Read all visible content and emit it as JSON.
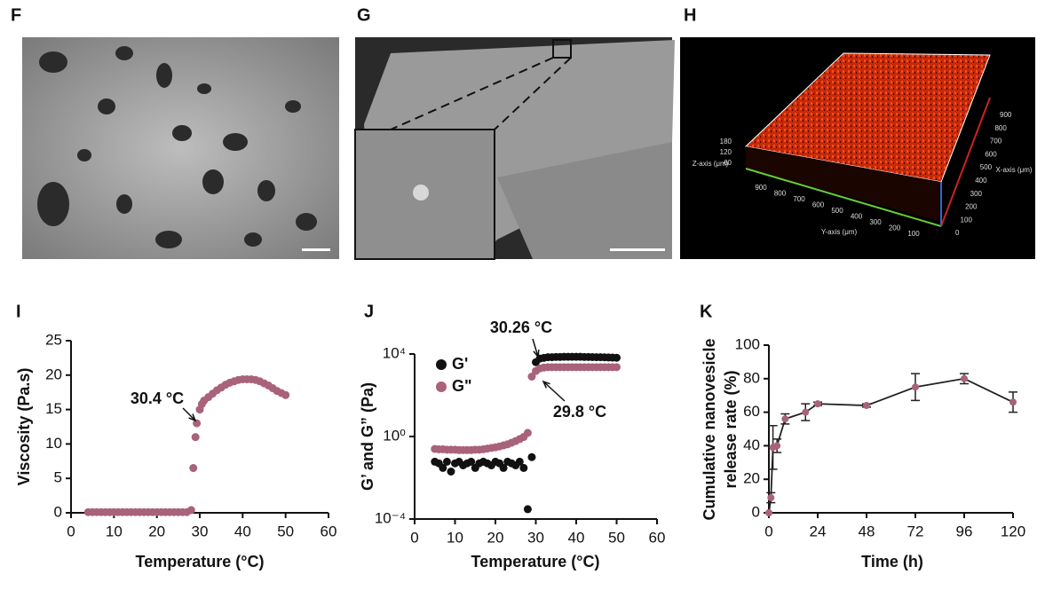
{
  "panels": [
    {
      "label": "F"
    },
    {
      "label": "G"
    },
    {
      "label": "H",
      "z_axis_label": "Z-axis (μm)",
      "z_ticks": [
        180,
        120,
        60
      ],
      "y_axis_label": "Y-axis (μm)",
      "y_ticks": [
        900,
        800,
        700,
        600,
        500,
        400,
        300,
        200,
        100
      ],
      "x_axis_label": "X-axis (μm)",
      "x_ticks": [
        900,
        800,
        700,
        600,
        500,
        400,
        300,
        200,
        100,
        0
      ]
    }
  ],
  "chart_data": [
    {
      "label": "I",
      "type": "scatter",
      "x_label": "Temperature (°C)",
      "y_label": "Viscosity (Pa.s)",
      "xlim": [
        0,
        60
      ],
      "xticks": [
        0,
        10,
        20,
        30,
        40,
        50,
        60
      ],
      "ylim": [
        0,
        25
      ],
      "yticks": [
        0,
        5,
        10,
        15,
        20,
        25
      ],
      "annotations": [
        "30.4 °C"
      ],
      "series": [
        {
          "color": "#a8627a",
          "x": [
            4,
            5,
            6,
            7,
            8,
            9,
            10,
            11,
            12,
            13,
            14,
            15,
            16,
            17,
            18,
            19,
            20,
            21,
            22,
            23,
            24,
            25,
            26,
            27,
            28,
            28.5,
            29,
            29.3,
            30,
            30.5,
            31,
            32,
            33,
            34,
            35,
            36,
            37,
            38,
            39,
            40,
            41,
            42,
            43,
            44,
            45,
            46,
            47,
            48,
            49,
            50
          ],
          "values": [
            0.1,
            0.1,
            0.1,
            0.1,
            0.1,
            0.1,
            0.1,
            0.1,
            0.1,
            0.1,
            0.1,
            0.1,
            0.1,
            0.1,
            0.1,
            0.1,
            0.1,
            0.1,
            0.1,
            0.1,
            0.1,
            0.1,
            0.1,
            0.1,
            0.4,
            6.5,
            11,
            13,
            15,
            15.8,
            16.3,
            16.8,
            17.3,
            17.8,
            18.2,
            18.6,
            18.9,
            19.1,
            19.3,
            19.4,
            19.4,
            19.4,
            19.3,
            19.1,
            18.8,
            18.5,
            18.1,
            17.7,
            17.4,
            17.1
          ]
        }
      ]
    },
    {
      "label": "J",
      "type": "scatter",
      "log_y": true,
      "legend": "upper left",
      "x_label": "Temperature (°C)",
      "y_label": "G’ and G” (Pa)",
      "xlim": [
        0,
        60
      ],
      "xticks": [
        0,
        10,
        20,
        30,
        40,
        50,
        60
      ],
      "ylim": [
        0.0001,
        10000
      ],
      "yticks": [
        {
          "value": 0.0001,
          "label": "10⁻⁴"
        },
        {
          "value": 1,
          "label": "10⁰"
        },
        {
          "value": 10000,
          "label": "10⁴"
        }
      ],
      "annotations": [
        "30.26 °C",
        "29.8 °C"
      ],
      "series": [
        {
          "name": "G'",
          "color": "#111111",
          "x": [
            5,
            6,
            7,
            8,
            9,
            10,
            11,
            12,
            13,
            14,
            15,
            16,
            17,
            18,
            19,
            20,
            21,
            22,
            23,
            24,
            25,
            26,
            27,
            28,
            29,
            30,
            31,
            32,
            33,
            34,
            35,
            36,
            37,
            38,
            39,
            40,
            41,
            42,
            43,
            44,
            45,
            46,
            47,
            48,
            49,
            50
          ],
          "values": [
            0.06,
            0.05,
            0.03,
            0.06,
            0.02,
            0.05,
            0.06,
            0.04,
            0.05,
            0.06,
            0.03,
            0.05,
            0.06,
            0.05,
            0.04,
            0.06,
            0.05,
            0.03,
            0.06,
            0.05,
            0.04,
            0.06,
            0.03,
            0.0003,
            0.1,
            4000,
            6000,
            6500,
            7000,
            7000,
            7200,
            7200,
            7300,
            7300,
            7300,
            7300,
            7300,
            7200,
            7200,
            7100,
            7000,
            7000,
            6900,
            6800,
            6700,
            6600
          ]
        },
        {
          "name": "G\"",
          "color": "#a8627a",
          "x": [
            5,
            6,
            7,
            8,
            9,
            10,
            11,
            12,
            13,
            14,
            15,
            16,
            17,
            18,
            19,
            20,
            21,
            22,
            23,
            24,
            25,
            26,
            27,
            28,
            29,
            30,
            31,
            32,
            33,
            34,
            35,
            36,
            37,
            38,
            39,
            40,
            41,
            42,
            43,
            44,
            45,
            46,
            47,
            48,
            49,
            50
          ],
          "values": [
            0.25,
            0.24,
            0.24,
            0.23,
            0.23,
            0.23,
            0.22,
            0.22,
            0.22,
            0.22,
            0.23,
            0.23,
            0.24,
            0.26,
            0.28,
            0.3,
            0.33,
            0.37,
            0.42,
            0.5,
            0.6,
            0.75,
            0.95,
            1.5,
            800,
            1500,
            2000,
            2200,
            2300,
            2300,
            2300,
            2300,
            2300,
            2300,
            2300,
            2300,
            2300,
            2300,
            2300,
            2300,
            2300,
            2300,
            2300,
            2300,
            2300,
            2300
          ]
        }
      ]
    },
    {
      "label": "K",
      "type": "line",
      "x_label": "Time (h)",
      "y_label": [
        "Cumulative nanovesicle",
        "release rate (%)"
      ],
      "xlim": [
        0,
        120
      ],
      "xticks": [
        0,
        24,
        48,
        72,
        96,
        120
      ],
      "ylim": [
        0,
        100
      ],
      "yticks": [
        0,
        20,
        40,
        60,
        80,
        100
      ],
      "series": [
        {
          "color": "#a8627a",
          "line_color": "#222222",
          "x": [
            0,
            1,
            2,
            4,
            8,
            18,
            24,
            48,
            72,
            96,
            120
          ],
          "values": [
            0,
            9,
            39,
            40,
            56,
            60,
            65,
            64,
            75,
            80,
            66
          ],
          "errors": [
            0,
            3,
            13,
            4,
            3,
            5,
            1,
            1,
            8,
            3,
            6
          ]
        }
      ]
    }
  ]
}
